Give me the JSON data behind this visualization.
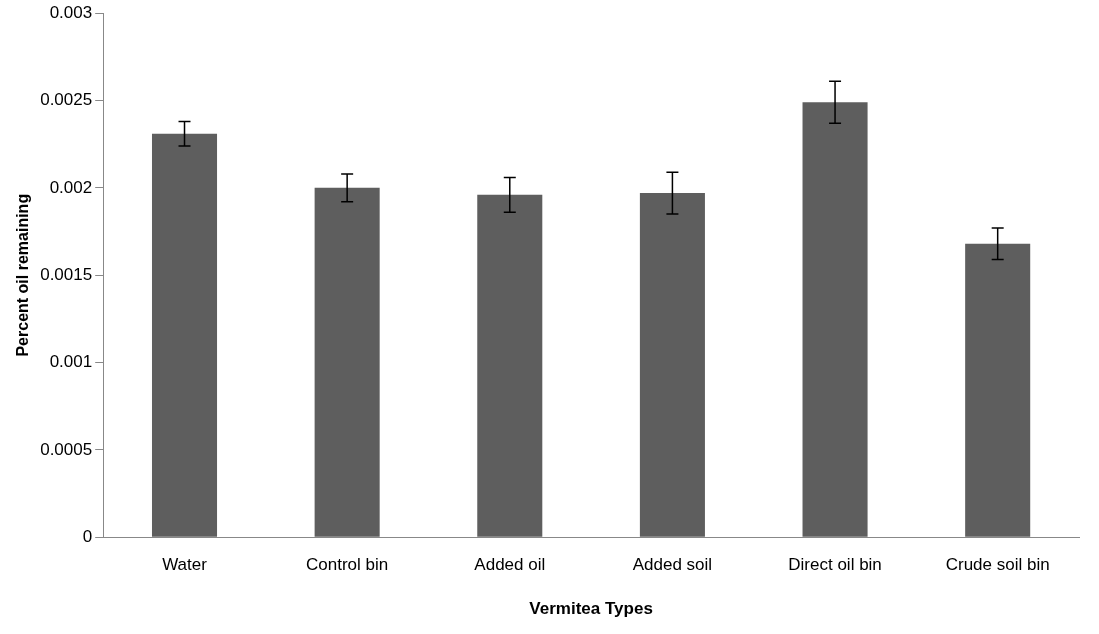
{
  "chart_data": {
    "type": "bar",
    "xlabel": "Vermitea Types",
    "ylabel": "Percent oil remaining",
    "categories": [
      "Water",
      "Control bin",
      "Added oil",
      "Added soil",
      "Direct oil bin",
      "Crude soil bin"
    ],
    "values": [
      0.00231,
      0.002,
      0.00196,
      0.00197,
      0.00249,
      0.00168
    ],
    "errors": [
      7e-05,
      8e-05,
      0.0001,
      0.00012,
      0.00012,
      9e-05
    ],
    "color": "#5e5e5e",
    "ylim": [
      0,
      0.003
    ],
    "yticks": [
      0,
      0.0005,
      0.001,
      0.0015,
      0.002,
      0.0025,
      0.003
    ],
    "grid": false,
    "legend": false
  }
}
